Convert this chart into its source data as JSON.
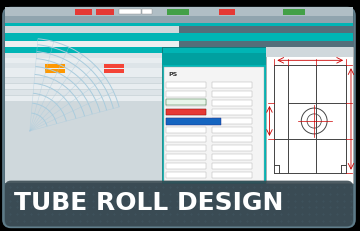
{
  "title": "TUBE ROLL DESIGN",
  "title_color": "#ffffff",
  "title_fontsize": 18,
  "bg_color": "#000000",
  "card_bg": "#546e7a",
  "banner_bg": "#37474f",
  "teal_color": "#00b5b5",
  "teal_dark": "#009999",
  "white_bg": "#f5f5f5",
  "cad_bg": "#ffffff",
  "cad_line": "#cc0000",
  "cad_dark_line": "#444444",
  "toolbar1_bg": "#b0bec5",
  "toolbar2_bg": "#90a4ae",
  "toolbar3_bg": "#78909c",
  "red_btn": "#e53935",
  "green_btn": "#43a047",
  "arc_color": "#aaccdd",
  "left_bg": "#cfd8dc",
  "orange_cell": "#ff9800",
  "red_cell": "#f44336",
  "dot_color": "#4a6572"
}
